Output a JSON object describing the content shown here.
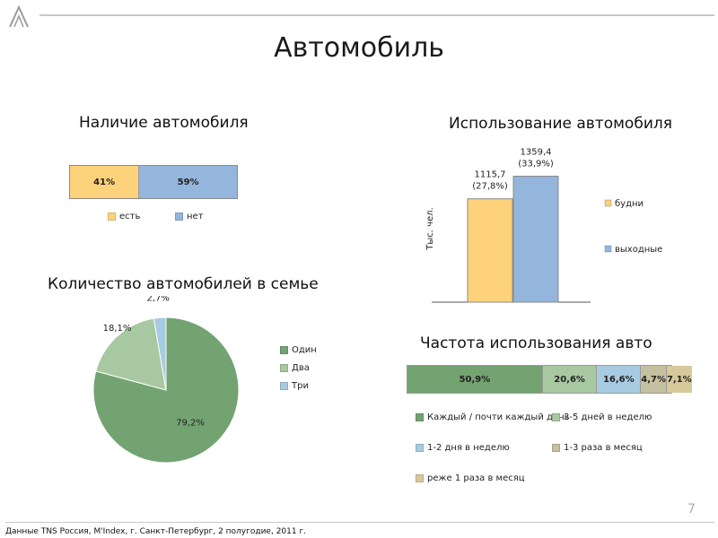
{
  "slide": {
    "title": "Автомобиль",
    "page_number": "7",
    "footer": "Данные TNS Россия, M'Index, г. Санкт-Петербург, 2 полугодие, 2011 г."
  },
  "colors": {
    "orange": "#fdd27a",
    "blue": "#95b6dc",
    "green_dark": "#72a371",
    "green_light": "#a8c8a2",
    "light_blue": "#a7cbe0",
    "gray_beige": "#c4c0a0",
    "beige": "#d7c999"
  },
  "chart_data": [
    {
      "id": "car_ownership",
      "type": "bar",
      "stacked": true,
      "orientation": "horizontal",
      "percent": true,
      "title": "Наличие автомобиля",
      "series": [
        {
          "name": "есть",
          "values": [
            41
          ],
          "label": "41%",
          "color": "#fdd27a"
        },
        {
          "name": "нет",
          "values": [
            59
          ],
          "label": "59%",
          "color": "#95b6dc"
        }
      ],
      "legend": "bottom"
    },
    {
      "id": "car_usage",
      "type": "bar",
      "title": "Использование автомобиля",
      "ylabel": "Тыс. чел.",
      "ylim": [
        0,
        1500
      ],
      "series": [
        {
          "name": "будни",
          "values": [
            1115.7
          ],
          "label": [
            "1115,7",
            "(27,8%)"
          ],
          "color": "#fdd27a"
        },
        {
          "name": "выходные",
          "values": [
            1359.4
          ],
          "label": [
            "1359,4",
            "(33,9%)"
          ],
          "color": "#95b6dc"
        }
      ],
      "legend": "right"
    },
    {
      "id": "cars_per_family",
      "type": "pie",
      "title": "Количество автомобилей в семье",
      "slices": [
        {
          "name": "Один",
          "value": 79.2,
          "label": "79,2%",
          "color": "#72a371"
        },
        {
          "name": "Два",
          "value": 18.1,
          "label": "18,1%",
          "color": "#a8c8a2"
        },
        {
          "name": "Три",
          "value": 2.7,
          "label": "2,7%",
          "color": "#a7cbe0"
        }
      ],
      "legend": "right"
    },
    {
      "id": "usage_frequency",
      "type": "bar",
      "stacked": true,
      "orientation": "horizontal",
      "percent": true,
      "title": "Частота использования авто",
      "series": [
        {
          "name": "Каждый / почти каждый день",
          "values": [
            50.9
          ],
          "label": "50,9%",
          "color": "#72a371"
        },
        {
          "name": "3-5 дней в неделю",
          "values": [
            20.6
          ],
          "label": "20,6%",
          "color": "#a8c8a2"
        },
        {
          "name": "1-2 дня в неделю",
          "values": [
            16.6
          ],
          "label": "16,6%",
          "color": "#a7cbe0"
        },
        {
          "name": "1-3 раза в месяц",
          "values": [
            4.7
          ],
          "label": "4,7%",
          "color": "#c4c0a0"
        },
        {
          "name": "реже 1 раза в месяц",
          "values": [
            7.1
          ],
          "label": "7,1%",
          "color": "#d7c999"
        }
      ],
      "legend": "bottom"
    }
  ]
}
